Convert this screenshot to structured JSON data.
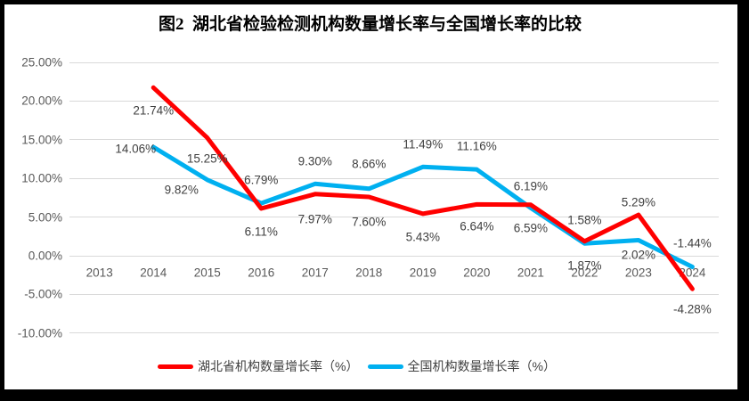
{
  "chart_data": {
    "type": "line",
    "title": "图2  湖北省检验检测机构数量增长率与全国增长率的比较",
    "categories": [
      "2013",
      "2014",
      "2015",
      "2016",
      "2017",
      "2018",
      "2019",
      "2020",
      "2021",
      "2022",
      "2023",
      "2024"
    ],
    "series": [
      {
        "name": "湖北省机构数量增长率（%）",
        "color": "#FF0000",
        "values": [
          null,
          21.74,
          15.25,
          6.11,
          7.97,
          7.6,
          5.43,
          6.64,
          6.59,
          1.87,
          5.29,
          -4.28
        ],
        "label_offsets": [
          null,
          [
            0,
            26
          ],
          [
            0,
            23
          ],
          [
            0,
            26
          ],
          [
            0,
            28
          ],
          [
            0,
            28
          ],
          [
            0,
            26
          ],
          [
            0,
            25
          ],
          [
            0,
            26
          ],
          [
            0,
            27
          ],
          [
            0,
            -14
          ],
          [
            0,
            23
          ]
        ]
      },
      {
        "name": "全国机构数量增长率（%）",
        "color": "#00B0F0",
        "values": [
          null,
          14.06,
          9.82,
          6.79,
          9.3,
          8.66,
          11.49,
          11.16,
          6.19,
          1.58,
          2.02,
          -1.44
        ],
        "label_offsets": [
          null,
          [
            -20,
            2
          ],
          [
            -29,
            11
          ],
          [
            0,
            -26
          ],
          [
            0,
            -25
          ],
          [
            0,
            -28
          ],
          [
            0,
            -25
          ],
          [
            0,
            -26
          ],
          [
            0,
            -24
          ],
          [
            0,
            -26
          ],
          [
            0,
            17
          ],
          [
            0,
            -26
          ]
        ]
      }
    ],
    "y_axis": {
      "min": -10,
      "max": 25,
      "step": 5,
      "tick_format": "0.00%"
    },
    "grid": true,
    "legend_position": "bottom",
    "colors": {
      "gridline": "#d9d9d9",
      "tick_text": "#595959",
      "label_text": "#3f3f3f",
      "frame": "#000000"
    }
  }
}
